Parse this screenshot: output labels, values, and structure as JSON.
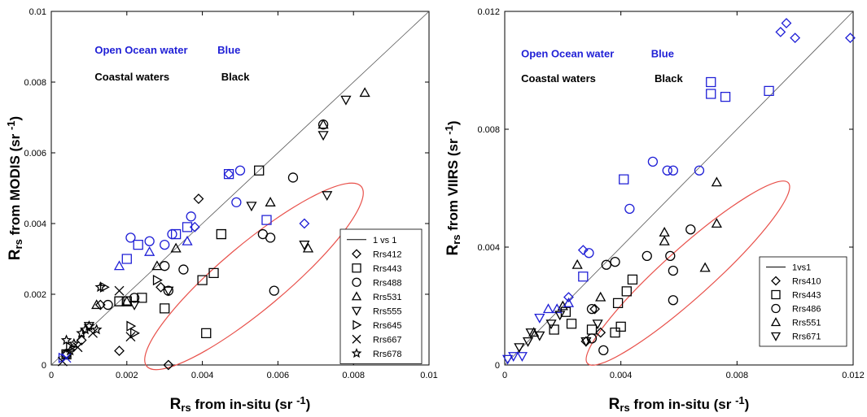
{
  "chart_data": [
    {
      "type": "scatter",
      "xlabel": [
        "R",
        "rs",
        " from in-situ (sr ",
        "-1",
        ")"
      ],
      "ylabel": [
        "R",
        "rs",
        " from MODIS (sr ",
        "-1",
        ")"
      ],
      "xlim": [
        0,
        0.01
      ],
      "ylim": [
        0,
        0.01
      ],
      "xticks": [
        0,
        0.002,
        0.004,
        0.006,
        0.008,
        0.01
      ],
      "yticks": [
        0,
        0.002,
        0.004,
        0.006,
        0.008,
        0.01
      ],
      "annotations": [
        {
          "text": "Open Ocean water",
          "color": "#1f1fd6"
        },
        {
          "text": "Blue",
          "color": "#1f1fd6"
        },
        {
          "text": "Coastal waters",
          "color": "#000000"
        },
        {
          "text": "Black",
          "color": "#000000"
        }
      ],
      "ref_line_label": "1 vs 1",
      "series": [
        {
          "name": "Rrs412",
          "marker": "diamond",
          "x": [
            0.0004,
            0.0008,
            0.0013,
            0.0018,
            0.0029,
            0.0031,
            0.0039,
            0.0038,
            0.0047,
            0.0067
          ],
          "values": [
            0.0003,
            0.0007,
            0.0017,
            0.0004,
            0.0022,
            0.0,
            0.0047,
            0.0039,
            0.0054,
            0.004
          ],
          "colors": [
            "#000000",
            "#000000",
            "#000000",
            "#000000",
            "#000000",
            "#000000",
            "#000000",
            "#1f1fd6",
            "#1f1fd6",
            "#1f1fd6"
          ]
        },
        {
          "name": "Rrs443",
          "marker": "square",
          "x": [
            0.0004,
            0.0018,
            0.002,
            0.0024,
            0.003,
            0.004,
            0.0045,
            0.0041,
            0.0043,
            0.0055,
            0.0036,
            0.0057,
            0.0047,
            0.002,
            0.0023,
            0.0033
          ],
          "values": [
            0.0003,
            0.0018,
            0.0018,
            0.0019,
            0.0016,
            0.0024,
            0.0037,
            0.0009,
            0.0026,
            0.0055,
            0.0039,
            0.0041,
            0.0054,
            0.003,
            0.0034,
            0.0037
          ],
          "colors": [
            "#000000",
            "#000000",
            "#000000",
            "#000000",
            "#000000",
            "#000000",
            "#000000",
            "#000000",
            "#000000",
            "#000000",
            "#1f1fd6",
            "#1f1fd6",
            "#1f1fd6",
            "#1f1fd6",
            "#1f1fd6",
            "#1f1fd6"
          ]
        },
        {
          "name": "Rrs488",
          "marker": "circle",
          "x": [
            0.0004,
            0.0015,
            0.0022,
            0.003,
            0.0031,
            0.0035,
            0.0056,
            0.0058,
            0.0059,
            0.0064,
            0.0072,
            0.003,
            0.0032,
            0.0037,
            0.005,
            0.0049,
            0.0021,
            0.0026
          ],
          "values": [
            0.0003,
            0.0017,
            0.0019,
            0.0028,
            0.0021,
            0.0027,
            0.0037,
            0.0036,
            0.0021,
            0.0053,
            0.0068,
            0.0034,
            0.0037,
            0.0042,
            0.0055,
            0.0046,
            0.0036,
            0.0035
          ],
          "colors": [
            "#000000",
            "#000000",
            "#000000",
            "#000000",
            "#000000",
            "#000000",
            "#000000",
            "#000000",
            "#000000",
            "#000000",
            "#000000",
            "#1f1fd6",
            "#1f1fd6",
            "#1f1fd6",
            "#1f1fd6",
            "#1f1fd6",
            "#1f1fd6",
            "#1f1fd6"
          ]
        },
        {
          "name": "Rrs531",
          "marker": "triangle-up",
          "x": [
            0.0012,
            0.002,
            0.0028,
            0.0033,
            0.0058,
            0.0068,
            0.0072,
            0.0083,
            0.0018,
            0.0036,
            0.0026
          ],
          "values": [
            0.0017,
            0.0018,
            0.0028,
            0.0033,
            0.0046,
            0.0033,
            0.0068,
            0.0077,
            0.0028,
            0.0035,
            0.0032
          ],
          "colors": [
            "#000000",
            "#000000",
            "#000000",
            "#000000",
            "#000000",
            "#000000",
            "#000000",
            "#000000",
            "#1f1fd6",
            "#1f1fd6",
            "#1f1fd6"
          ]
        },
        {
          "name": "Rrs555",
          "marker": "triangle-down",
          "x": [
            0.001,
            0.0022,
            0.0031,
            0.0053,
            0.0067,
            0.0072,
            0.0073,
            0.0078
          ],
          "values": [
            0.0011,
            0.0017,
            0.0021,
            0.0045,
            0.0034,
            0.0065,
            0.0048,
            0.0075
          ],
          "colors": [
            "#000000",
            "#000000",
            "#000000",
            "#000000",
            "#000000",
            "#000000",
            "#000000",
            "#000000"
          ]
        },
        {
          "name": "Rrs645",
          "marker": "triangle-right",
          "x": [
            0.0005,
            0.0014,
            0.0021,
            0.0028,
            0.0022,
            0.0003
          ],
          "values": [
            0.0005,
            0.0022,
            0.0011,
            0.0024,
            0.0009,
            0.0002
          ],
          "colors": [
            "#000000",
            "#000000",
            "#000000",
            "#000000",
            "#000000",
            "#1f1fd6"
          ]
        },
        {
          "name": "Rrs667",
          "marker": "x",
          "x": [
            0.0003,
            0.0007,
            0.0011,
            0.0018,
            0.0021,
            0.0004
          ],
          "values": [
            0.0001,
            0.0005,
            0.0009,
            0.0021,
            0.0008,
            0.0002
          ],
          "colors": [
            "#000000",
            "#000000",
            "#000000",
            "#000000",
            "#000000",
            "#1f1fd6"
          ]
        },
        {
          "name": "Rrs678",
          "marker": "star",
          "x": [
            0.0004,
            0.0006,
            0.0008,
            0.001,
            0.0012,
            0.0013,
            0.0009,
            0.0005
          ],
          "values": [
            0.0007,
            0.0006,
            0.0009,
            0.0011,
            0.001,
            0.0022,
            0.001,
            0.0004
          ],
          "colors": [
            "#000000",
            "#000000",
            "#000000",
            "#000000",
            "#000000",
            "#000000",
            "#000000",
            "#000000"
          ]
        }
      ]
    },
    {
      "type": "scatter",
      "xlabel": [
        "R",
        "rs",
        " from in-situ (sr ",
        "-1",
        ")"
      ],
      "ylabel": [
        "R",
        "rs",
        " from VIIRS (sr ",
        "-1",
        ")"
      ],
      "xlim": [
        0,
        0.012
      ],
      "ylim": [
        0,
        0.012
      ],
      "xticks": [
        0,
        0.004,
        0.008,
        0.012
      ],
      "yticks": [
        0,
        0.004,
        0.008,
        0.012
      ],
      "annotations": [
        {
          "text": "Open Ocean water",
          "color": "#1f1fd6"
        },
        {
          "text": "Blue",
          "color": "#1f1fd6"
        },
        {
          "text": "Coastal waters",
          "color": "#000000"
        },
        {
          "text": "Black",
          "color": "#000000"
        }
      ],
      "ref_line_label": "1vs1",
      "series": [
        {
          "name": "Rrs410",
          "marker": "diamond",
          "x": [
            0.0097,
            0.0095,
            0.01,
            0.0119,
            0.0027,
            0.0022,
            0.0031,
            0.0033,
            0.0028
          ],
          "values": [
            0.0116,
            0.0113,
            0.0111,
            0.0111,
            0.0039,
            0.0023,
            0.0019,
            0.0011,
            0.0008
          ],
          "colors": [
            "#1f1fd6",
            "#1f1fd6",
            "#1f1fd6",
            "#1f1fd6",
            "#1f1fd6",
            "#1f1fd6",
            "#000000",
            "#000000",
            "#000000"
          ]
        },
        {
          "name": "Rrs443",
          "marker": "square",
          "x": [
            0.0071,
            0.0071,
            0.0076,
            0.0091,
            0.0041,
            0.0027,
            0.003,
            0.0038,
            0.004,
            0.0039,
            0.0042,
            0.0044,
            0.0023,
            0.0017,
            0.0021
          ],
          "values": [
            0.0096,
            0.0092,
            0.0091,
            0.0093,
            0.0063,
            0.003,
            0.0012,
            0.0011,
            0.0013,
            0.0021,
            0.0025,
            0.0029,
            0.0014,
            0.0012,
            0.0018
          ],
          "colors": [
            "#1f1fd6",
            "#1f1fd6",
            "#1f1fd6",
            "#1f1fd6",
            "#1f1fd6",
            "#1f1fd6",
            "#000000",
            "#000000",
            "#000000",
            "#000000",
            "#000000",
            "#000000",
            "#000000",
            "#000000",
            "#000000"
          ]
        },
        {
          "name": "Rrs486",
          "marker": "circle",
          "x": [
            0.0051,
            0.0056,
            0.0058,
            0.0067,
            0.0043,
            0.0029,
            0.0035,
            0.0038,
            0.0049,
            0.0057,
            0.0058,
            0.0058,
            0.0064,
            0.003,
            0.0034,
            0.003
          ],
          "values": [
            0.0069,
            0.0066,
            0.0066,
            0.0066,
            0.0053,
            0.0038,
            0.0034,
            0.0035,
            0.0037,
            0.0037,
            0.0032,
            0.0022,
            0.0046,
            0.0019,
            0.0005,
            0.0009
          ],
          "colors": [
            "#1f1fd6",
            "#1f1fd6",
            "#1f1fd6",
            "#1f1fd6",
            "#1f1fd6",
            "#1f1fd6",
            "#000000",
            "#000000",
            "#000000",
            "#000000",
            "#000000",
            "#000000",
            "#000000",
            "#000000",
            "#000000",
            "#000000"
          ]
        },
        {
          "name": "Rrs551",
          "marker": "triangle-up",
          "x": [
            0.0025,
            0.0033,
            0.0055,
            0.0055,
            0.0073,
            0.0073,
            0.0069,
            0.001,
            0.002,
            0.0015,
            0.0018,
            0.0022
          ],
          "values": [
            0.0034,
            0.0023,
            0.0045,
            0.0042,
            0.0062,
            0.0048,
            0.0033,
            0.0011,
            0.002,
            0.0019,
            0.0019,
            0.0021
          ],
          "colors": [
            "#000000",
            "#000000",
            "#000000",
            "#000000",
            "#000000",
            "#000000",
            "#000000",
            "#000000",
            "#000000",
            "#1f1fd6",
            "#1f1fd6",
            "#1f1fd6"
          ]
        },
        {
          "name": "Rrs671",
          "marker": "triangle-down",
          "x": [
            0.0001,
            0.0003,
            0.0006,
            0.0012,
            0.0005,
            0.0008,
            0.0012,
            0.0016,
            0.0019,
            0.0028,
            0.0032,
            0.0009
          ],
          "values": [
            0.0002,
            0.0003,
            0.0003,
            0.0016,
            0.0006,
            0.0008,
            0.001,
            0.0014,
            0.0017,
            0.0008,
            0.0014,
            0.0011
          ],
          "colors": [
            "#1f1fd6",
            "#1f1fd6",
            "#1f1fd6",
            "#1f1fd6",
            "#000000",
            "#000000",
            "#000000",
            "#000000",
            "#000000",
            "#000000",
            "#000000",
            "#000000"
          ]
        }
      ]
    }
  ]
}
